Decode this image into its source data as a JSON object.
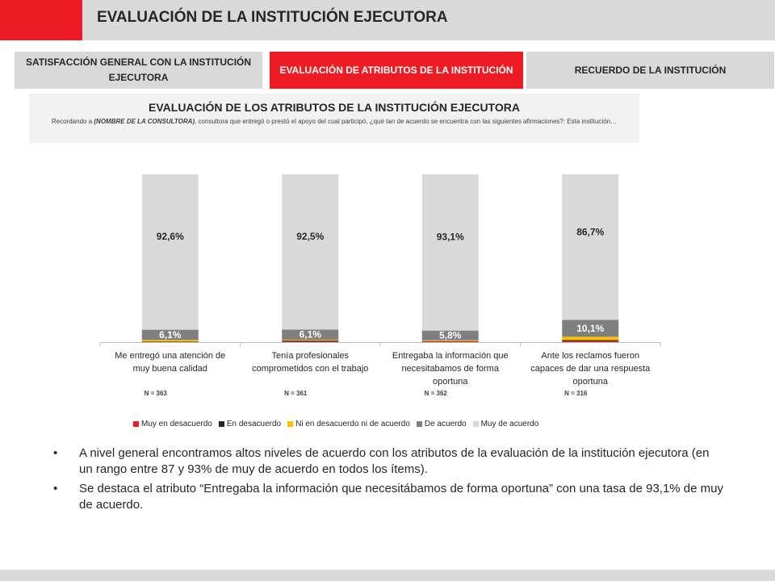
{
  "header": {
    "title": "EVALUACIÓN DE LA INSTITUCIÓN EJECUTORA"
  },
  "tabs": [
    {
      "label": "SATISFACCIÓN GENERAL CON LA INSTITUCIÓN EJECUTORA"
    },
    {
      "label": "EVALUACIÓN DE ATRIBUTOS DE LA INSTITUCIÓN"
    },
    {
      "label": "RECUERDO DE LA INSTITUCIÓN"
    }
  ],
  "section": {
    "title": "EVALUACIÓN DE LOS ATRIBUTOS DE LA INSTITUCIÓN EJECUTORA",
    "question_prefix": "Recordando a ",
    "question_emph": "(NOMBRE DE LA CONSULTORA)",
    "question_rest": ", consultora que entregó o prestó el apoyo del cual participó, ¿qué tan de acuerdo se encuentra con las siguientes afirmaciones?: Esta institución…"
  },
  "chart_data": {
    "type": "bar",
    "stacked": true,
    "categories": [
      [
        "Me entregó una atención de",
        "muy buena calidad"
      ],
      [
        "Tenía profesionales",
        "comprometidos con el trabajo"
      ],
      [
        "Entregaba la información que",
        "necesitabamos de forma",
        "oportuna"
      ],
      [
        "Ante los reclamos fueron",
        "capaces de dar una respuesta",
        "oportuna"
      ]
    ],
    "n_labels": [
      "N = 363",
      "N = 361",
      "N = 362",
      "N = 316"
    ],
    "series": [
      {
        "name": "Muy en desacuerdo",
        "color": "#ed1c24",
        "values": [
          0.0,
          0.3,
          0.3,
          0.6
        ]
      },
      {
        "name": "En desacuerdo",
        "color": "#262626",
        "values": [
          0.3,
          0.6,
          0.3,
          0.6
        ]
      },
      {
        "name": "Ni en desacuerdo ni de acuerdo",
        "color": "#ffc000",
        "values": [
          1.0,
          0.5,
          0.5,
          2.0
        ]
      },
      {
        "name": "De acuerdo",
        "color": "#7f7f7f",
        "values": [
          6.1,
          6.1,
          5.8,
          10.1
        ]
      },
      {
        "name": "Muy de acuerdo",
        "color": "#d9d9d9",
        "values": [
          92.6,
          92.5,
          93.1,
          86.7
        ]
      }
    ],
    "data_labels": {
      "De acuerdo": [
        "6,1%",
        "6,1%",
        "5,8%",
        "10,1%"
      ],
      "Muy de acuerdo": [
        "92,6%",
        "92,5%",
        "93,1%",
        "86,7%"
      ]
    },
    "ylim": [
      0,
      100
    ],
    "grid": false,
    "legend_position": "bottom"
  },
  "bullets": [
    "A nivel general encontramos altos niveles de acuerdo con los atributos de la evaluación de la institución ejecutora (en un rango entre 87 y 93% de muy de acuerdo en todos los ítems).",
    "Se destaca el atributo “Entregaba la información que necesitábamos de forma oportuna” con una tasa de  93,1% de muy de acuerdo."
  ],
  "bullet_glyph": "•"
}
